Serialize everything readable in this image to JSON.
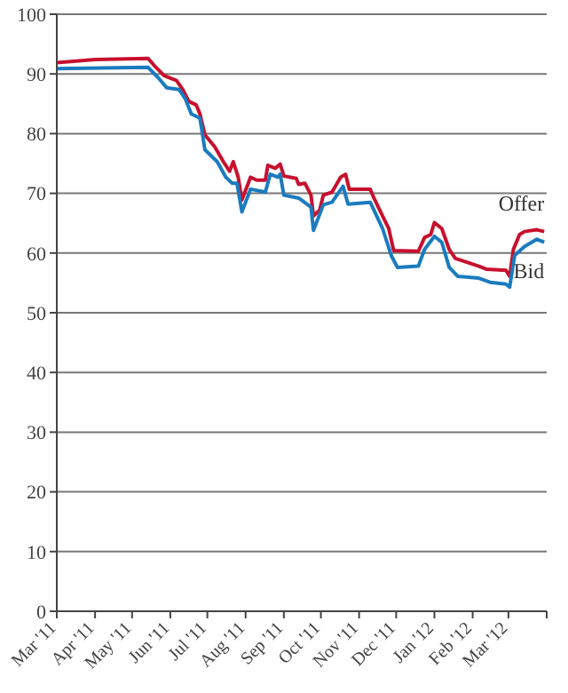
{
  "chart_data": {
    "type": "line",
    "xlim": [
      "2011-03-01",
      "2012-04-01"
    ],
    "xticks": [
      {
        "value": "2011-03-01",
        "label": "Mar '11"
      },
      {
        "value": "2011-04-01",
        "label": "Apr '11"
      },
      {
        "value": "2011-05-01",
        "label": "May '11"
      },
      {
        "value": "2011-06-01",
        "label": "Jun '11"
      },
      {
        "value": "2011-07-01",
        "label": "Jul '11"
      },
      {
        "value": "2011-08-01",
        "label": "Aug '11"
      },
      {
        "value": "2011-09-01",
        "label": "Sep '11"
      },
      {
        "value": "2011-10-01",
        "label": "Oct '11"
      },
      {
        "value": "2011-11-01",
        "label": "Nov '11"
      },
      {
        "value": "2011-12-01",
        "label": "Dec '11"
      },
      {
        "value": "2012-01-01",
        "label": "Jan '12"
      },
      {
        "value": "2012-02-01",
        "label": "Feb '12"
      },
      {
        "value": "2012-03-01",
        "label": "Mar '12"
      },
      {
        "value": "2012-04-01",
        "label": null
      }
    ],
    "ylim": [
      0,
      100
    ],
    "yticks": [
      0,
      10,
      20,
      30,
      40,
      50,
      60,
      70,
      80,
      90,
      100
    ],
    "grid": "y",
    "legend": false,
    "series": [
      {
        "name": "Offer",
        "color": "#c8102e",
        "x": [
          "2011-03-01",
          "2011-04-01",
          "2011-05-14",
          "2011-05-19",
          "2011-05-27",
          "2011-06-06",
          "2011-06-11",
          "2011-06-16",
          "2011-06-22",
          "2011-06-25",
          "2011-06-29",
          "2011-07-07",
          "2011-07-14",
          "2011-07-19",
          "2011-07-22",
          "2011-07-26",
          "2011-07-29",
          "2011-08-05",
          "2011-08-10",
          "2011-08-17",
          "2011-08-19",
          "2011-08-25",
          "2011-08-29",
          "2011-09-01",
          "2011-09-11",
          "2011-09-13",
          "2011-09-18",
          "2011-09-23",
          "2011-09-25",
          "2011-09-30",
          "2011-10-03",
          "2011-10-10",
          "2011-10-17",
          "2011-10-21",
          "2011-10-24",
          "2011-11-10",
          "2011-11-13",
          "2011-11-20",
          "2011-11-25",
          "2011-11-29",
          "2011-12-19",
          "2011-12-24",
          "2011-12-29",
          "2012-01-01",
          "2012-01-07",
          "2012-01-13",
          "2012-01-18",
          "2012-02-06",
          "2012-02-12",
          "2012-02-28",
          "2012-03-02",
          "2012-03-05",
          "2012-03-10",
          "2012-03-14",
          "2012-03-24",
          "2012-03-30"
        ],
        "values": [
          91.9,
          92.4,
          92.6,
          91.4,
          89.7,
          88.9,
          87.4,
          85.4,
          84.8,
          83.3,
          79.8,
          77.8,
          75.3,
          73.7,
          75.3,
          72.7,
          68.9,
          72.7,
          72.2,
          72.2,
          74.7,
          74.2,
          74.9,
          72.9,
          72.5,
          71.5,
          71.7,
          69.7,
          66.2,
          67.2,
          69.7,
          70.2,
          72.7,
          73.2,
          70.7,
          70.7,
          69.2,
          66.2,
          64.1,
          60.4,
          60.3,
          62.6,
          63.1,
          65.1,
          64.1,
          60.6,
          59.1,
          57.8,
          57.3,
          57.1,
          56.1,
          60.6,
          63.1,
          63.6,
          63.9,
          63.6
        ]
      },
      {
        "name": "Bid",
        "color": "#1a7bbf",
        "x": [
          "2011-03-01",
          "2011-05-14",
          "2011-05-22",
          "2011-05-29",
          "2011-06-08",
          "2011-06-13",
          "2011-06-18",
          "2011-06-25",
          "2011-06-29",
          "2011-07-09",
          "2011-07-16",
          "2011-07-21",
          "2011-07-25",
          "2011-07-29",
          "2011-08-05",
          "2011-08-17",
          "2011-08-21",
          "2011-08-27",
          "2011-08-29",
          "2011-09-01",
          "2011-09-13",
          "2011-09-23",
          "2011-09-25",
          "2011-10-03",
          "2011-10-10",
          "2011-10-19",
          "2011-10-23",
          "2011-11-10",
          "2011-11-20",
          "2011-11-27",
          "2011-12-02",
          "2011-12-19",
          "2011-12-24",
          "2012-01-01",
          "2012-01-07",
          "2012-01-13",
          "2012-01-20",
          "2012-02-06",
          "2012-02-15",
          "2012-02-28",
          "2012-03-02",
          "2012-03-06",
          "2012-03-14",
          "2012-03-24",
          "2012-03-30"
        ],
        "values": [
          90.9,
          91.1,
          89.4,
          87.7,
          87.4,
          85.9,
          83.3,
          82.6,
          77.3,
          75.3,
          72.7,
          71.7,
          71.7,
          66.9,
          70.7,
          70.2,
          73.2,
          72.7,
          73.2,
          69.7,
          69.2,
          67.7,
          63.8,
          68.1,
          68.5,
          71.2,
          68.2,
          68.5,
          64.1,
          59.6,
          57.6,
          57.8,
          60.6,
          62.8,
          61.8,
          57.6,
          56.1,
          55.8,
          55.1,
          54.8,
          54.3,
          59.6,
          61.1,
          62.3,
          61.8
        ]
      }
    ]
  }
}
